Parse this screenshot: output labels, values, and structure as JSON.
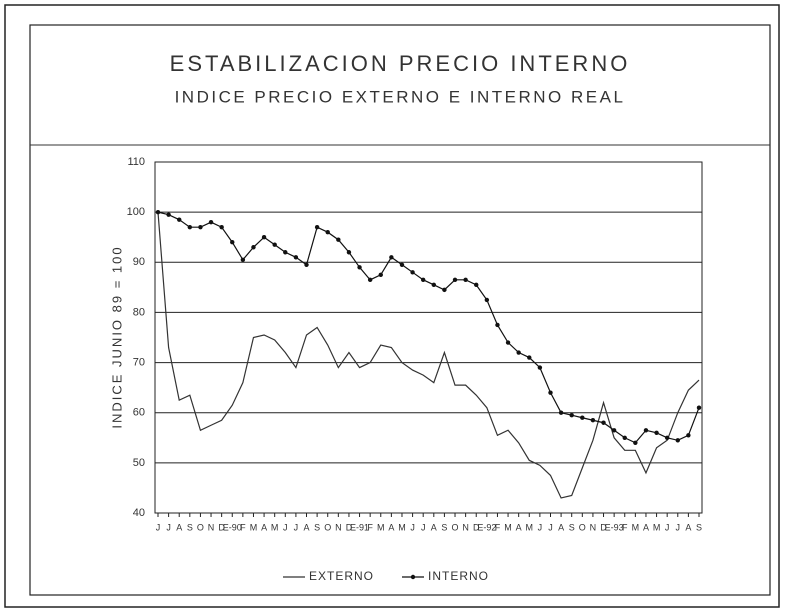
{
  "chart_data": {
    "type": "line",
    "title": "ESTABILIZACION PRECIO INTERNO",
    "subtitle": "INDICE PRECIO EXTERNO E INTERNO REAL",
    "y_label": "INDICE JUNIO 89 = 100",
    "categories": [
      "J",
      "J",
      "A",
      "S",
      "O",
      "N",
      "D",
      "E-90",
      "F",
      "M",
      "A",
      "M",
      "J",
      "J",
      "A",
      "S",
      "O",
      "N",
      "D",
      "E-91",
      "F",
      "M",
      "A",
      "M",
      "J",
      "J",
      "A",
      "S",
      "O",
      "N",
      "D",
      "E-92",
      "F",
      "M",
      "A",
      "M",
      "J",
      "J",
      "A",
      "S",
      "O",
      "N",
      "D",
      "E-93",
      "F",
      "M",
      "A",
      "M",
      "J",
      "J",
      "A",
      "S"
    ],
    "series": [
      {
        "name": "EXTERNO",
        "color": "#333333",
        "marker": false,
        "values": [
          100,
          73,
          62.5,
          63.5,
          56.5,
          57.5,
          58.5,
          61.5,
          66,
          75,
          75.5,
          74.5,
          72,
          69,
          75.5,
          77,
          73.5,
          69,
          72,
          69,
          70,
          73.5,
          73,
          70,
          68.5,
          67.5,
          66,
          72,
          65.5,
          65.5,
          63.5,
          61,
          55.5,
          56.5,
          54,
          50.5,
          49.5,
          47.5,
          43,
          43.5,
          49,
          54.5,
          62,
          55,
          52.5,
          52.5,
          48,
          53,
          54.5,
          60,
          64.5,
          66.5
        ]
      },
      {
        "name": "INTERNO",
        "color": "#111111",
        "marker": true,
        "values": [
          100,
          99.5,
          98.5,
          97,
          97,
          98,
          97,
          94,
          90.5,
          93,
          95,
          93.5,
          92,
          91,
          89.5,
          97,
          96,
          94.5,
          92,
          89,
          86.5,
          87.5,
          91,
          89.5,
          88,
          86.5,
          85.5,
          84.5,
          86.5,
          86.5,
          85.5,
          82.5,
          77.5,
          74,
          72,
          71,
          69,
          64,
          60,
          59.5,
          59,
          58.5,
          58,
          56.5,
          55,
          54,
          56.5,
          56,
          55,
          54.5,
          55.5,
          61
        ]
      }
    ],
    "ylim": [
      40,
      110
    ],
    "yticks": [
      40,
      50,
      60,
      70,
      80,
      90,
      100,
      110
    ],
    "grid": true
  }
}
